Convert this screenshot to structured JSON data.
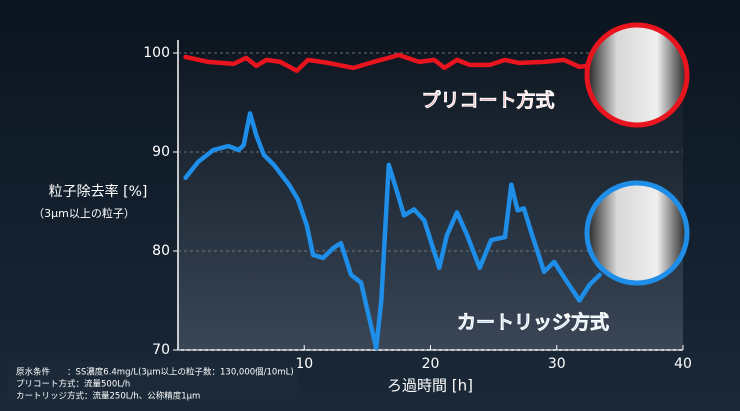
{
  "chart_data": {
    "type": "line",
    "y_label": "粒子除去率 [%]",
    "y_sublabel": "（3μm以上の粒子）",
    "x_label": "ろ過時間 [h]",
    "xlim": [
      0,
      40
    ],
    "xticks": [
      10,
      20,
      30,
      40
    ],
    "ylim": [
      70,
      100
    ],
    "yticks": [
      70,
      80,
      90,
      100
    ],
    "grid": true,
    "series": [
      {
        "name": "プリコート方式",
        "color": "#e8141e",
        "x": [
          0.6,
          2.4,
          4.4,
          5.4,
          6.2,
          7,
          8.1,
          9.4,
          10.3,
          11.9,
          13.9,
          15.5,
          17.5,
          19.1,
          20.3,
          21.1,
          22.1,
          23.1,
          24.7,
          25.9,
          27,
          29,
          30.6,
          31.8,
          33
        ],
        "values": [
          99.6,
          99.1,
          98.9,
          99.5,
          98.7,
          99.3,
          99.1,
          98.2,
          99.3,
          99,
          98.5,
          99.1,
          99.8,
          99.1,
          99.3,
          98.5,
          99.3,
          98.8,
          98.8,
          99.3,
          99,
          99.1,
          99.3,
          98.6,
          98.8
        ]
      },
      {
        "name": "カートリッジ方式",
        "color": "#1e8ee8",
        "x": [
          0.6,
          1.6,
          2.8,
          4,
          4.8,
          5.2,
          5.7,
          6.2,
          6.8,
          7.6,
          8.8,
          9.5,
          10.2,
          10.7,
          11.5,
          12.3,
          12.9,
          13.7,
          14.5,
          15.1,
          15.7,
          16.1,
          16.7,
          17.3,
          17.9,
          18.7,
          19.5,
          20.7,
          21.3,
          22.1,
          22.9,
          23.9,
          24.8,
          25.9,
          26.4,
          26.9,
          27.4,
          28,
          29,
          29.8,
          30.6,
          31.8,
          32.6,
          33.4
        ],
        "values": [
          87.4,
          89,
          90.2,
          90.6,
          90.2,
          90.7,
          93.9,
          91.7,
          89.7,
          88.7,
          86.7,
          85.2,
          82.6,
          79.6,
          79.3,
          80.3,
          80.8,
          77.6,
          76.8,
          73.5,
          70.2,
          75,
          88.7,
          86.2,
          83.6,
          84.2,
          83.1,
          78.3,
          81.6,
          83.9,
          81.6,
          78.3,
          81.1,
          81.4,
          86.7,
          84.1,
          84.3,
          81.8,
          77.9,
          78.9,
          77.3,
          75,
          76.6,
          77.6
        ]
      }
    ],
    "notes": [
      "原水条件　　：SS濃度6.4mg/L(3μm以上の粒子数：130,000個/10mL)",
      "プリコート方式：流量500L/h",
      "カートリッジ方式：流量250L/h、公称精度1μm"
    ]
  }
}
